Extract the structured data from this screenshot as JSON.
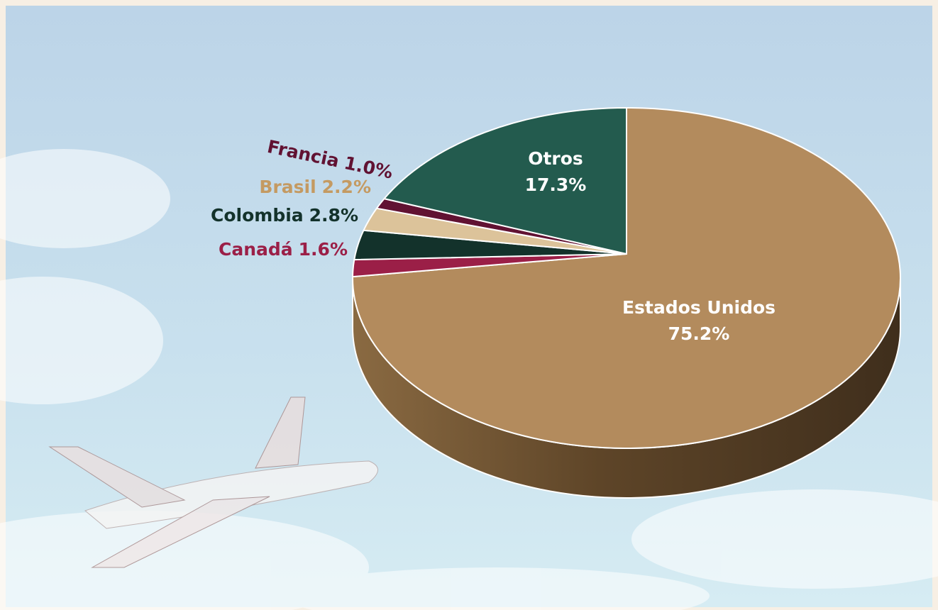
{
  "chart_data": {
    "type": "pie",
    "categories": [
      "Estados Unidos",
      "Canadá",
      "Colombia",
      "Brasil",
      "Francia",
      "Otros"
    ],
    "values": [
      75.2,
      1.6,
      2.8,
      2.2,
      1.0,
      17.3
    ],
    "value_labels": [
      "75.2%",
      "1.6%",
      "2.8%",
      "2.2%",
      "1.0%",
      "17.3%"
    ],
    "colors": [
      "#b38b5d",
      "#9b1f47",
      "#13322b",
      "#dcc39a",
      "#611232",
      "#235b4e"
    ],
    "three_d": true
  }
}
